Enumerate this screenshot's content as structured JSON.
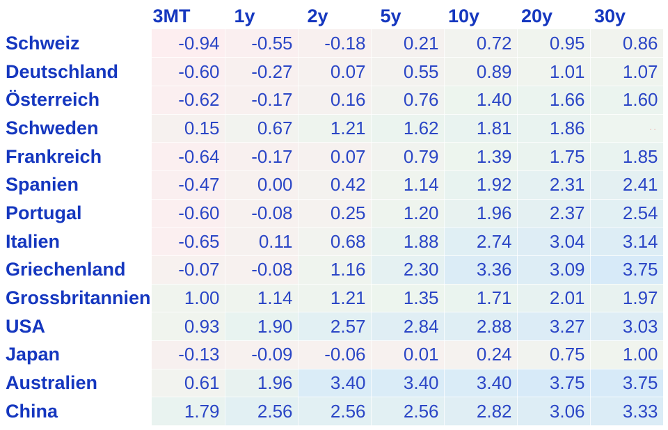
{
  "chart_data": {
    "type": "table",
    "title": "",
    "columns": [
      "3MT",
      "1y",
      "2y",
      "5y",
      "10y",
      "20y",
      "30y"
    ],
    "rows": [
      {
        "label": "Schweiz",
        "values": [
          -0.94,
          -0.55,
          -0.18,
          0.21,
          0.72,
          0.95,
          0.86
        ]
      },
      {
        "label": "Deutschland",
        "values": [
          -0.6,
          -0.27,
          0.07,
          0.55,
          0.89,
          1.01,
          1.07
        ]
      },
      {
        "label": "Österreich",
        "values": [
          -0.62,
          -0.17,
          0.16,
          0.76,
          1.4,
          1.66,
          1.6
        ]
      },
      {
        "label": "Schweden",
        "values": [
          0.15,
          0.67,
          1.21,
          1.62,
          1.81,
          1.86,
          null
        ]
      },
      {
        "label": "Frankreich",
        "values": [
          -0.64,
          -0.17,
          0.07,
          0.79,
          1.39,
          1.75,
          1.85
        ]
      },
      {
        "label": "Spanien",
        "values": [
          -0.47,
          0.0,
          0.42,
          1.14,
          1.92,
          2.31,
          2.41
        ]
      },
      {
        "label": "Portugal",
        "values": [
          -0.6,
          -0.08,
          0.25,
          1.2,
          1.96,
          2.37,
          2.54
        ]
      },
      {
        "label": "Italien",
        "values": [
          -0.65,
          0.11,
          0.68,
          1.88,
          2.74,
          3.04,
          3.14
        ]
      },
      {
        "label": "Griechenland",
        "values": [
          -0.07,
          -0.08,
          1.16,
          2.3,
          3.36,
          3.09,
          3.75
        ]
      },
      {
        "label": "Grossbritannien",
        "values": [
          1.0,
          1.14,
          1.21,
          1.35,
          1.71,
          2.01,
          1.97
        ]
      },
      {
        "label": "USA",
        "values": [
          0.93,
          1.9,
          2.57,
          2.84,
          2.88,
          3.27,
          3.03
        ]
      },
      {
        "label": "Japan",
        "values": [
          -0.13,
          -0.09,
          -0.06,
          0.01,
          0.24,
          0.75,
          1.0
        ]
      },
      {
        "label": "Australien",
        "values": [
          0.61,
          1.96,
          3.4,
          3.4,
          3.4,
          3.75,
          3.75
        ]
      },
      {
        "label": "China",
        "values": [
          1.79,
          2.56,
          2.56,
          2.56,
          2.82,
          3.06,
          3.33
        ]
      }
    ],
    "value_format": "2-decimals",
    "layout": {
      "grid": "off",
      "legend": "none"
    }
  },
  "style": {
    "label_color": "#1537bf",
    "number_color": "#2b46c6",
    "color_scale": {
      "min_value": -0.94,
      "min_color": "#fdeef0",
      "mid_value": 1.4,
      "mid_color": "#edf5ee",
      "max_value": 3.75,
      "max_color": "#d7eaf8"
    },
    "empty_cell_color": "#eef5f0",
    "artifact_color": "#eccfc9",
    "artifact_text": "··"
  }
}
